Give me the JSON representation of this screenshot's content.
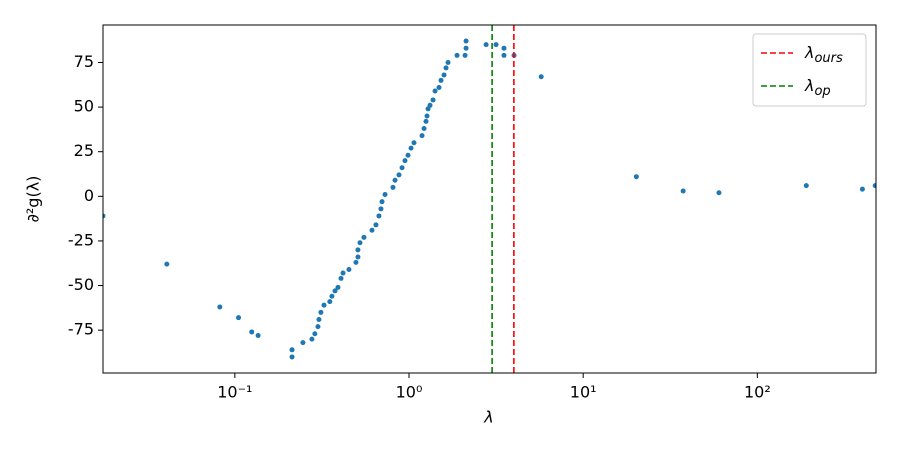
{
  "chart_data": {
    "type": "scatter",
    "x_label": "λ",
    "y_label": "∂²g(λ)",
    "xscale": "log",
    "xlim": [
      0.0175,
      480
    ],
    "ylim": [
      -99,
      96
    ],
    "xticks": [
      {
        "value": 0.1,
        "label": "10⁻¹"
      },
      {
        "value": 1,
        "label": "10⁰"
      },
      {
        "value": 10,
        "label": "10¹"
      },
      {
        "value": 100,
        "label": "10²"
      }
    ],
    "yticks": [
      -75,
      -50,
      -25,
      0,
      25,
      50,
      75
    ],
    "color": "#1f77b4",
    "x": [
      0.0175,
      0.0407,
      0.082,
      0.105,
      0.125,
      0.136,
      0.213,
      0.213,
      0.246,
      0.277,
      0.288,
      0.3,
      0.304,
      0.312,
      0.325,
      0.351,
      0.361,
      0.376,
      0.391,
      0.407,
      0.418,
      0.452,
      0.496,
      0.509,
      0.509,
      0.523,
      0.551,
      0.613,
      0.646,
      0.672,
      0.69,
      0.7,
      0.728,
      0.809,
      0.831,
      0.876,
      0.912,
      0.948,
      0.987,
      1.027,
      1.068,
      1.188,
      1.22,
      1.252,
      1.269,
      1.286,
      1.32,
      1.374,
      1.411,
      1.487,
      1.527,
      1.589,
      1.631,
      1.675,
      1.887,
      2.098,
      2.126,
      2.126,
      2.771,
      3.16,
      3.51,
      3.51,
      4.01,
      5.74,
      20.2,
      37.5,
      60.2,
      191,
      401,
      475
    ],
    "y": [
      -11,
      -38,
      -62,
      -68,
      -76,
      -78,
      -86,
      -90,
      -82,
      -80,
      -77,
      -73,
      -69,
      -65,
      -61,
      -59,
      -56,
      -53,
      -51,
      -46,
      -43,
      -41,
      -37,
      -34,
      -30,
      -26,
      -23,
      -19,
      -16,
      -11,
      -7,
      -3,
      1,
      5,
      9,
      12,
      16,
      20,
      23,
      27,
      30,
      34,
      38,
      42,
      45,
      49,
      51,
      54,
      59,
      61,
      65,
      68,
      72,
      75,
      79,
      79,
      83,
      87,
      85,
      85,
      83,
      79,
      79,
      67,
      11,
      3,
      2,
      6,
      4,
      6
    ],
    "vlines": [
      {
        "symbol": "λ",
        "subscript": "ours",
        "x": 4.0,
        "color": "#ff0000"
      },
      {
        "symbol": "λ",
        "subscript": "op",
        "x": 3.0,
        "color": "#008000"
      }
    ],
    "legend": "upper right"
  }
}
